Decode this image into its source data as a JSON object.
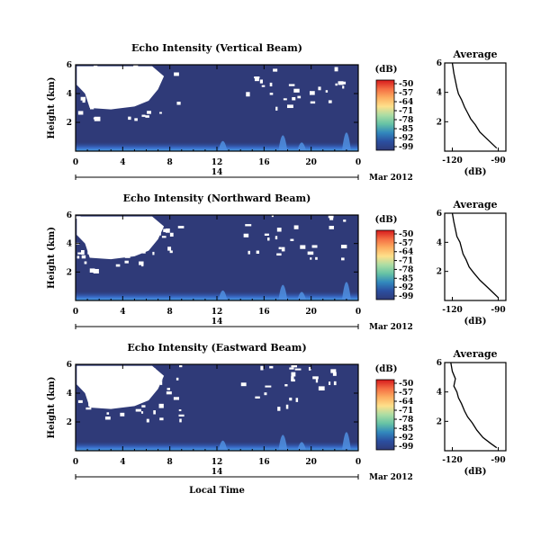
{
  "chart_data": [
    {
      "type": "heatmap",
      "title": "Echo Intensity (Vertical Beam)",
      "ylabel": "Height (km)",
      "y_ticks": [
        "6",
        "4",
        "2"
      ],
      "x_ticks": [
        "0",
        "4",
        "8",
        "12",
        "16",
        "20",
        "0"
      ],
      "date_day": "14",
      "date_month": "Mar 2012",
      "xlim": [
        0,
        24
      ],
      "ylim": [
        0,
        6
      ],
      "colorbar": {
        "unit": "(dB)",
        "ticks": [
          "-50",
          "-57",
          "-64",
          "-71",
          "-78",
          "-85",
          "-92",
          "-99"
        ]
      },
      "profile": {
        "title": "Average",
        "xlabel": "(dB)",
        "x_ticks": [
          "-120",
          "-90"
        ],
        "y_ticks": [
          "6",
          "4",
          "2"
        ],
        "xlim": [
          -125,
          -85
        ],
        "x": [
          -120,
          -119,
          -118,
          -117,
          -116,
          -114,
          -112,
          -110,
          -108,
          -105,
          -102,
          -98,
          -94,
          -91
        ],
        "y": [
          6.0,
          5.3,
          4.8,
          4.3,
          3.9,
          3.5,
          3.0,
          2.6,
          2.2,
          1.8,
          1.3,
          0.9,
          0.5,
          0.2
        ]
      }
    },
    {
      "type": "heatmap",
      "title": "Echo Intensity (Northward Beam)",
      "ylabel": "Height (km)",
      "y_ticks": [
        "6",
        "4",
        "2"
      ],
      "x_ticks": [
        "0",
        "4",
        "8",
        "12",
        "16",
        "20",
        "0"
      ],
      "date_day": "14",
      "date_month": "Mar 2012",
      "xlim": [
        0,
        24
      ],
      "ylim": [
        0,
        6
      ],
      "colorbar": {
        "unit": "(dB)",
        "ticks": [
          "-50",
          "-57",
          "-64",
          "-71",
          "-78",
          "-85",
          "-92",
          "-99"
        ]
      },
      "profile": {
        "title": "Average",
        "xlabel": "(dB)",
        "x_ticks": [
          "-120",
          "-90"
        ],
        "y_ticks": [
          "6",
          "4",
          "2"
        ],
        "xlim": [
          -125,
          -85
        ],
        "x": [
          -120,
          -119,
          -118,
          -117,
          -115,
          -114,
          -113,
          -111,
          -109,
          -106,
          -102,
          -97,
          -93,
          -90
        ],
        "y": [
          6.0,
          5.4,
          4.9,
          4.4,
          4.0,
          3.6,
          3.2,
          2.8,
          2.3,
          1.9,
          1.4,
          0.9,
          0.5,
          0.2
        ]
      }
    },
    {
      "type": "heatmap",
      "title": "Echo Intensity (Eastward Beam)",
      "ylabel": "Height (km)",
      "y_ticks": [
        "6",
        "4",
        "2"
      ],
      "x_ticks": [
        "0",
        "4",
        "8",
        "12",
        "16",
        "20",
        "0"
      ],
      "date_day": "14",
      "date_month": "Mar 2012",
      "xlabel": "Local Time",
      "xlim": [
        0,
        24
      ],
      "ylim": [
        0,
        6
      ],
      "colorbar": {
        "unit": "(dB)",
        "ticks": [
          "-50",
          "-57",
          "-64",
          "-71",
          "-78",
          "-85",
          "-92",
          "-99"
        ]
      },
      "profile": {
        "title": "Average",
        "xlabel": "(dB)",
        "x_ticks": [
          "-120",
          "-90"
        ],
        "y_ticks": [
          "6",
          "4",
          "2"
        ],
        "xlim": [
          -125,
          -85
        ],
        "x": [
          -121,
          -120,
          -118,
          -119,
          -117,
          -116,
          -114,
          -112,
          -110,
          -107,
          -104,
          -100,
          -95,
          -91
        ],
        "y": [
          6.0,
          5.4,
          4.9,
          4.4,
          4.0,
          3.6,
          3.2,
          2.7,
          2.3,
          1.9,
          1.4,
          0.9,
          0.5,
          0.2
        ]
      }
    }
  ],
  "colors": {
    "background_field": "#2f3a78",
    "data_gap": "#ffffff",
    "colormap": [
      "#d7191c",
      "#f46d43",
      "#fdae61",
      "#fee08b",
      "#abdda4",
      "#66c2a5",
      "#3288bd",
      "#2b4fa0",
      "#2f3a78"
    ]
  }
}
